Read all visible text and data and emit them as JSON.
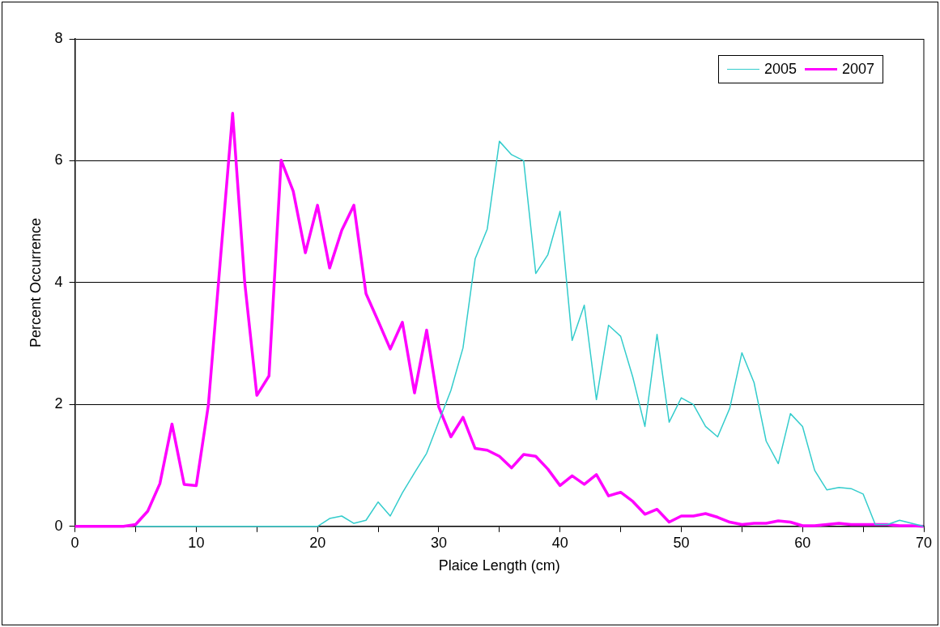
{
  "chart_data": {
    "type": "line",
    "xlabel": "Plaice Length (cm)",
    "ylabel": "Percent Occurrence",
    "x": [
      0,
      1,
      2,
      3,
      4,
      5,
      6,
      7,
      8,
      9,
      10,
      11,
      12,
      13,
      14,
      15,
      16,
      17,
      18,
      19,
      20,
      21,
      22,
      23,
      24,
      25,
      26,
      27,
      28,
      29,
      30,
      31,
      32,
      33,
      34,
      35,
      36,
      37,
      38,
      39,
      40,
      41,
      42,
      43,
      44,
      45,
      46,
      47,
      48,
      49,
      50,
      51,
      52,
      53,
      54,
      55,
      56,
      57,
      58,
      59,
      60,
      61,
      62,
      63,
      64,
      65,
      66,
      67,
      68,
      69,
      70
    ],
    "series": [
      {
        "name": "2005",
        "color": "#33cccc",
        "values": [
          null,
          null,
          null,
          null,
          null,
          0,
          0,
          0,
          0,
          0,
          0,
          0,
          0,
          0,
          0,
          0,
          0,
          0,
          0,
          0,
          0,
          0.13,
          0.17,
          0.05,
          0.1,
          0.4,
          0.17,
          0.55,
          0.88,
          1.2,
          1.72,
          2.23,
          2.93,
          4.39,
          4.88,
          6.32,
          6.1,
          6.0,
          4.15,
          4.46,
          5.17,
          3.05,
          3.63,
          2.08,
          3.3,
          3.12,
          2.45,
          1.64,
          3.15,
          1.71,
          2.11,
          2.0,
          1.64,
          1.47,
          1.94,
          2.85,
          2.36,
          1.4,
          1.03,
          1.85,
          1.64,
          0.92,
          0.6,
          0.64,
          0.62,
          0.53,
          0.03,
          0.03,
          0.1,
          0.05,
          0
        ]
      },
      {
        "name": "2007",
        "color": "#ff00ff",
        "values": [
          0,
          0,
          0,
          0,
          0,
          0.03,
          0.25,
          0.7,
          1.68,
          0.69,
          0.67,
          1.99,
          4.4,
          6.78,
          4.0,
          2.15,
          2.47,
          6.01,
          5.5,
          4.49,
          5.27,
          4.24,
          4.86,
          5.27,
          3.82,
          3.37,
          2.91,
          3.35,
          2.19,
          3.22,
          1.96,
          1.47,
          1.79,
          1.28,
          1.25,
          1.15,
          0.96,
          1.18,
          1.15,
          0.94,
          0.67,
          0.83,
          0.69,
          0.85,
          0.5,
          0.56,
          0.41,
          0.2,
          0.28,
          0.07,
          0.17,
          0.17,
          0.21,
          0.15,
          0.07,
          0.03,
          0.05,
          0.05,
          0.09,
          0.07,
          0.01,
          0.01,
          0.03,
          0.05,
          0.03,
          0.03,
          0.03,
          0.03,
          0.01,
          0.01,
          0
        ]
      }
    ],
    "xlim": [
      0,
      70
    ],
    "xticks": [
      0,
      {
        "value": 5,
        "label": null
      },
      10,
      {
        "value": 15,
        "label": null
      },
      20,
      {
        "value": 25,
        "label": null
      },
      30,
      {
        "value": 35,
        "label": null
      },
      40,
      {
        "value": 45,
        "label": null
      },
      50,
      {
        "value": 55,
        "label": null
      },
      60,
      {
        "value": 65,
        "label": null
      },
      70
    ],
    "ylim": [
      0,
      8
    ],
    "yticks": [
      0,
      2,
      4,
      6,
      8
    ],
    "grid": "y",
    "legend": "top right",
    "marker": "none",
    "line_style": "solid"
  }
}
